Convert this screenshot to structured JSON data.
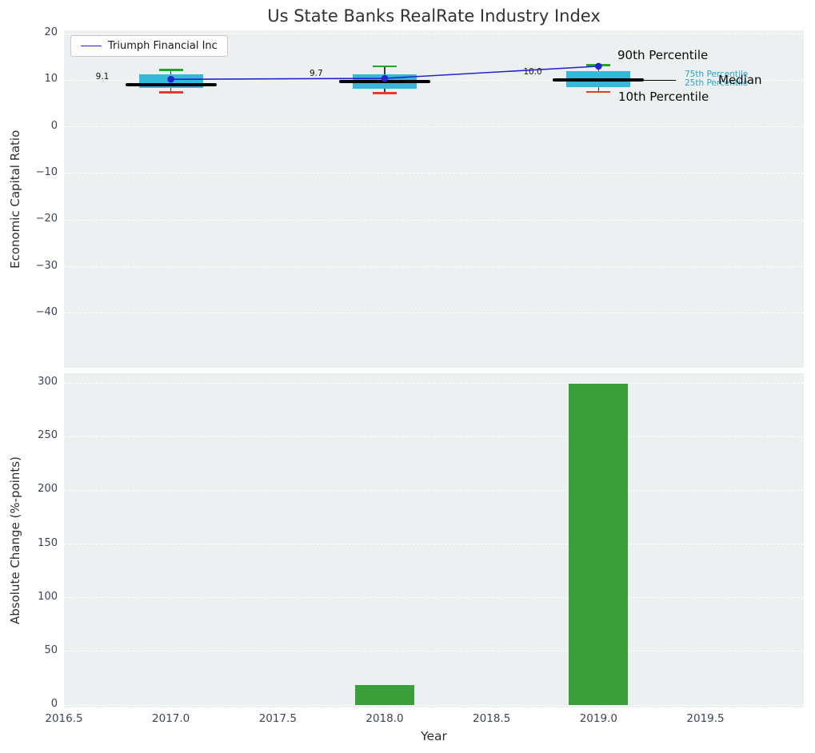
{
  "title": "Us State Banks RealRate Industry Index",
  "legend": {
    "label": "Triumph Financial Inc"
  },
  "colors": {
    "plot_bg": "#edf0f1",
    "grid": "#ffffff",
    "box_fill": "#35b9d9",
    "median": "#000000",
    "whisker_top": "#2ca02c",
    "whisker_bottom": "#e53935",
    "company_line": "#2323cb",
    "bar": "#3a9e3a",
    "percentile_text": "#29a3c4",
    "tick_text": "#3d4454",
    "title_text": "#323232"
  },
  "chart_data": [
    {
      "type": "box",
      "title": "Us State Banks RealRate Industry Index",
      "ylabel": "Economic Capital Ratio",
      "x": [
        2017,
        2018,
        2019
      ],
      "p90": [
        12.2,
        13.0,
        13.2
      ],
      "p75": [
        11.2,
        11.3,
        12.0
      ],
      "median": [
        9.1,
        9.7,
        10.0
      ],
      "p25": [
        8.3,
        8.2,
        8.5
      ],
      "p10": [
        7.4,
        7.2,
        7.5
      ],
      "median_labels": [
        "9.1",
        "9.7",
        "10.0"
      ],
      "company_series": {
        "name": "Triumph Financial Inc",
        "values": [
          10.2,
          10.4,
          13.0
        ]
      },
      "annotations": {
        "p90": "90th Percentile",
        "p75": "75th Percentile",
        "p25": "25th Percentile",
        "median": "Median",
        "p10": "10th Percentile"
      },
      "xlim": [
        2016.5,
        2019.96
      ],
      "ylim": [
        -51.7,
        20.7
      ],
      "yticks": [
        {
          "v": 20,
          "label": "20"
        },
        {
          "v": 10,
          "label": "10"
        },
        {
          "v": 0,
          "label": "0"
        },
        {
          "v": -10,
          "label": "−10"
        },
        {
          "v": -20,
          "label": "−20"
        },
        {
          "v": -30,
          "label": "−30"
        },
        {
          "v": -40,
          "label": "−40"
        }
      ],
      "grid": true,
      "legend_position": "upper left"
    },
    {
      "type": "bar",
      "xlabel": "Year",
      "ylabel": "Absolute Change (%-points)",
      "categories": [
        2018,
        2019
      ],
      "values": [
        19,
        299
      ],
      "xlim": [
        2016.5,
        2019.96
      ],
      "ylim": [
        -2.2,
        309
      ],
      "yticks": [
        {
          "v": 0,
          "label": "0"
        },
        {
          "v": 50,
          "label": "50"
        },
        {
          "v": 100,
          "label": "100"
        },
        {
          "v": 150,
          "label": "150"
        },
        {
          "v": 200,
          "label": "200"
        },
        {
          "v": 250,
          "label": "250"
        },
        {
          "v": 300,
          "label": "300"
        }
      ],
      "xticks": [
        {
          "v": 2016.5,
          "label": "2016.5"
        },
        {
          "v": 2017,
          "label": "2017.0"
        },
        {
          "v": 2017.5,
          "label": "2017.5"
        },
        {
          "v": 2018,
          "label": "2018.0"
        },
        {
          "v": 2018.5,
          "label": "2018.5"
        },
        {
          "v": 2019,
          "label": "2019.0"
        },
        {
          "v": 2019.5,
          "label": "2019.5"
        }
      ],
      "grid": true
    }
  ]
}
